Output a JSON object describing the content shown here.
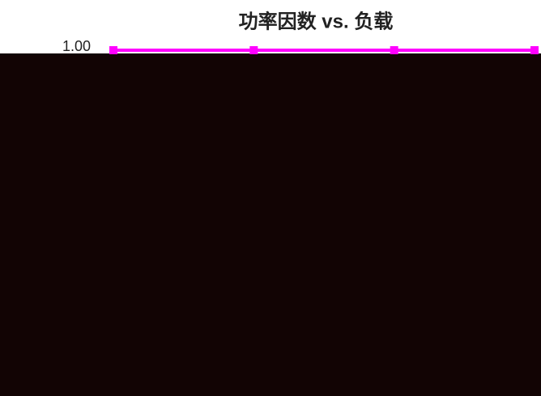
{
  "chart_data": {
    "type": "line",
    "title": "功率因数 vs. 负载",
    "categories": [
      null,
      null,
      null,
      null
    ],
    "series": [
      {
        "color": "#ff00ff",
        "values": [
          1.0,
          1.0,
          1.0,
          1.0
        ]
      }
    ],
    "ylim": [
      0.85,
      1.0
    ],
    "yticks": [
      {
        "value": 1.0,
        "label": "1.00"
      }
    ],
    "grid": true
  }
}
